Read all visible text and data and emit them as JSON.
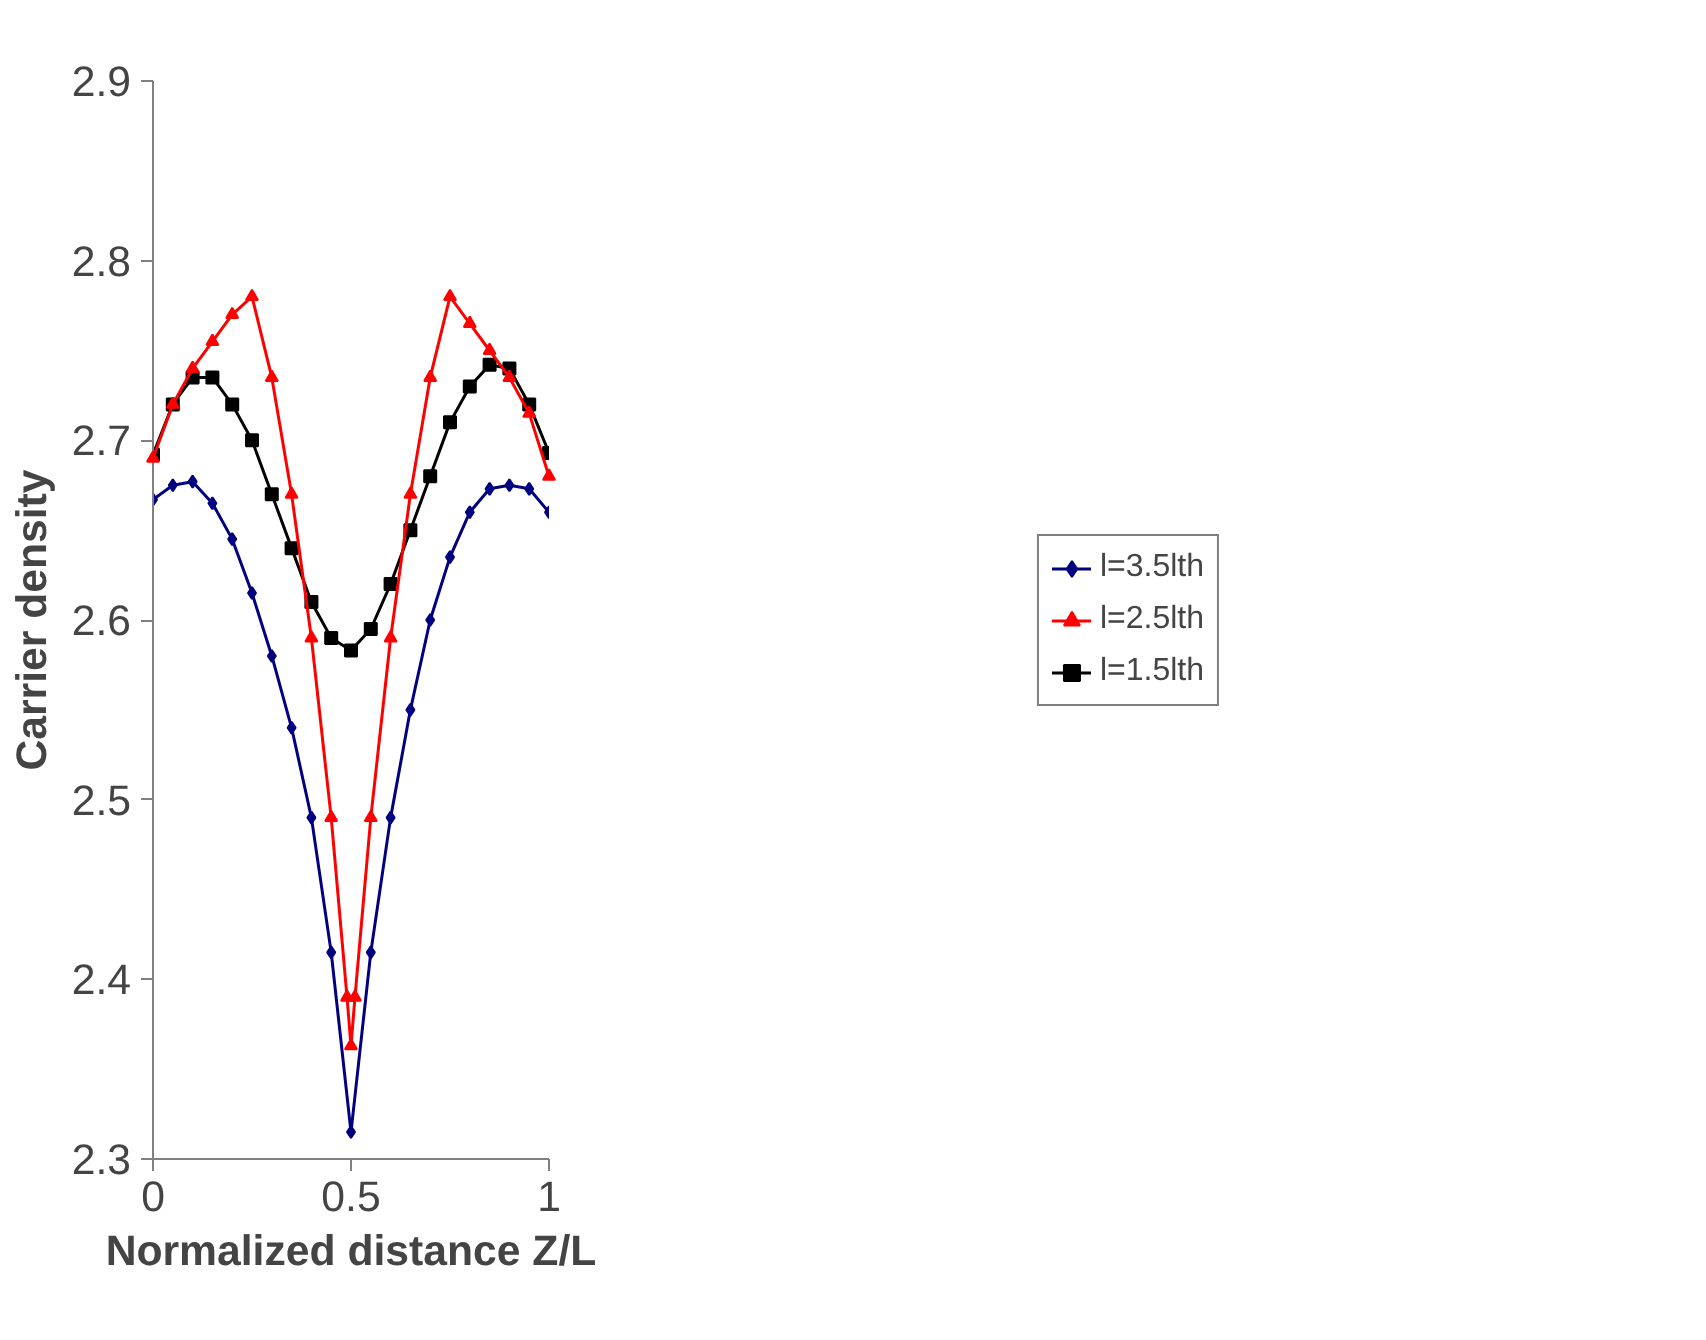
{
  "chart_data": {
    "type": "line",
    "xlabel": "Normalized distance Z/L",
    "ylabel": "Carrier density",
    "xlim": [
      0,
      1
    ],
    "ylim": [
      2.3,
      2.9
    ],
    "xticks": [
      0,
      0.5,
      1
    ],
    "yticks": [
      2.3,
      2.4,
      2.5,
      2.6,
      2.7,
      2.8,
      2.9
    ],
    "grid": false,
    "legend": "right",
    "line_style": "solid",
    "series": [
      {
        "name": "l=3.5lth",
        "color": "#000080",
        "marker": "diamond",
        "x": [
          0,
          0.05,
          0.1,
          0.15,
          0.2,
          0.25,
          0.3,
          0.35,
          0.4,
          0.45,
          0.5,
          0.55,
          0.6,
          0.65,
          0.7,
          0.75,
          0.8,
          0.85,
          0.9,
          0.95,
          1
        ],
        "values": [
          2.667,
          2.675,
          2.677,
          2.665,
          2.645,
          2.615,
          2.58,
          2.54,
          2.49,
          2.415,
          2.315,
          2.415,
          2.49,
          2.55,
          2.6,
          2.635,
          2.66,
          2.673,
          2.675,
          2.673,
          2.66
        ]
      },
      {
        "name": "l=2.5lth",
        "color": "#ff0000",
        "marker": "triangle",
        "x": [
          0,
          0.05,
          0.1,
          0.15,
          0.2,
          0.25,
          0.3,
          0.35,
          0.4,
          0.45,
          0.49,
          0.5,
          0.51,
          0.55,
          0.6,
          0.65,
          0.7,
          0.75,
          0.8,
          0.85,
          0.9,
          0.95,
          1
        ],
        "values": [
          2.69,
          2.72,
          2.74,
          2.755,
          2.77,
          2.78,
          2.735,
          2.67,
          2.59,
          2.49,
          2.39,
          2.363,
          2.39,
          2.49,
          2.59,
          2.67,
          2.735,
          2.78,
          2.765,
          2.75,
          2.735,
          2.715,
          2.68
        ]
      },
      {
        "name": "l=1.5lth",
        "color": "#000000",
        "marker": "square",
        "x": [
          0,
          0.05,
          0.1,
          0.15,
          0.2,
          0.25,
          0.3,
          0.35,
          0.4,
          0.45,
          0.5,
          0.55,
          0.6,
          0.65,
          0.7,
          0.75,
          0.8,
          0.85,
          0.9,
          0.95,
          1
        ],
        "values": [
          2.692,
          2.72,
          2.735,
          2.735,
          2.72,
          2.7,
          2.67,
          2.64,
          2.61,
          2.59,
          2.583,
          2.595,
          2.62,
          2.65,
          2.68,
          2.71,
          2.73,
          2.742,
          2.74,
          2.72,
          2.693
        ]
      }
    ]
  }
}
